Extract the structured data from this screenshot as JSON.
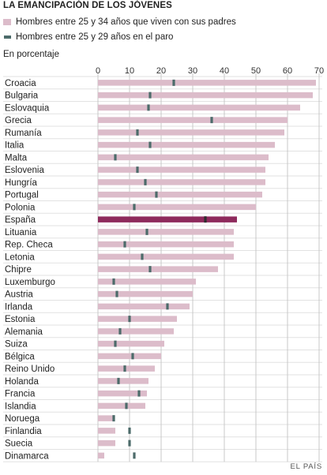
{
  "header": {
    "title": "LA EMANCIPACIÓN DE LOS JÓVENES",
    "unit_note": "En porcentaje",
    "source": "EL PAÍS"
  },
  "colors": {
    "bar": "#dcbcca",
    "bar_highlight": "#8e2a5c",
    "marker": "#4c6b6a",
    "marker_highlight": "#2f2f2f",
    "grid": "#bdbdbd",
    "row_line": "#e2e2e2"
  },
  "chart_data": {
    "type": "bar",
    "orientation": "horizontal",
    "title": "LA EMANCIPACIÓN DE LOS JÓVENES",
    "subtitle": "En porcentaje",
    "xlim": [
      0,
      70
    ],
    "xticks": [
      0,
      10,
      20,
      30,
      40,
      50,
      60,
      70
    ],
    "grid": true,
    "highlight": "España",
    "categories": [
      "Croacia",
      "Bulgaria",
      "Eslovaquia",
      "Grecia",
      "Rumanía",
      "Italia",
      "Malta",
      "Eslovenia",
      "Hungría",
      "Portugal",
      "Polonia",
      "España",
      "Lituania",
      "Rep. Checa",
      "Letonia",
      "Chipre",
      "Luxemburgo",
      "Austria",
      "Irlanda",
      "Estonia",
      "Alemania",
      "Suiza",
      "Bélgica",
      "Reino Unido",
      "Holanda",
      "Francia",
      "Islandia",
      "Noruega",
      "Finlandia",
      "Suecia",
      "Dinamarca"
    ],
    "series": [
      {
        "name": "Hombres entre 25 y 34 años que viven con sus padres",
        "style": "bar",
        "values": [
          69,
          68,
          64,
          60,
          59,
          56,
          54,
          53,
          53,
          52,
          50,
          44,
          43,
          43,
          43,
          38,
          31,
          30,
          29,
          25,
          24,
          21,
          20,
          18,
          16,
          15.5,
          15,
          5,
          5.5,
          5.5,
          2
        ]
      },
      {
        "name": "Hombres entre 25 y 29 años en el paro",
        "style": "marker",
        "values": [
          24,
          16.5,
          16,
          36,
          12.5,
          16.5,
          5.5,
          12.5,
          15,
          18.5,
          11.5,
          34,
          15.5,
          8.5,
          14,
          16.5,
          5,
          6,
          22,
          10,
          7,
          5.5,
          11,
          8.5,
          6.5,
          13,
          9,
          5,
          10,
          10,
          11.5
        ]
      }
    ]
  }
}
